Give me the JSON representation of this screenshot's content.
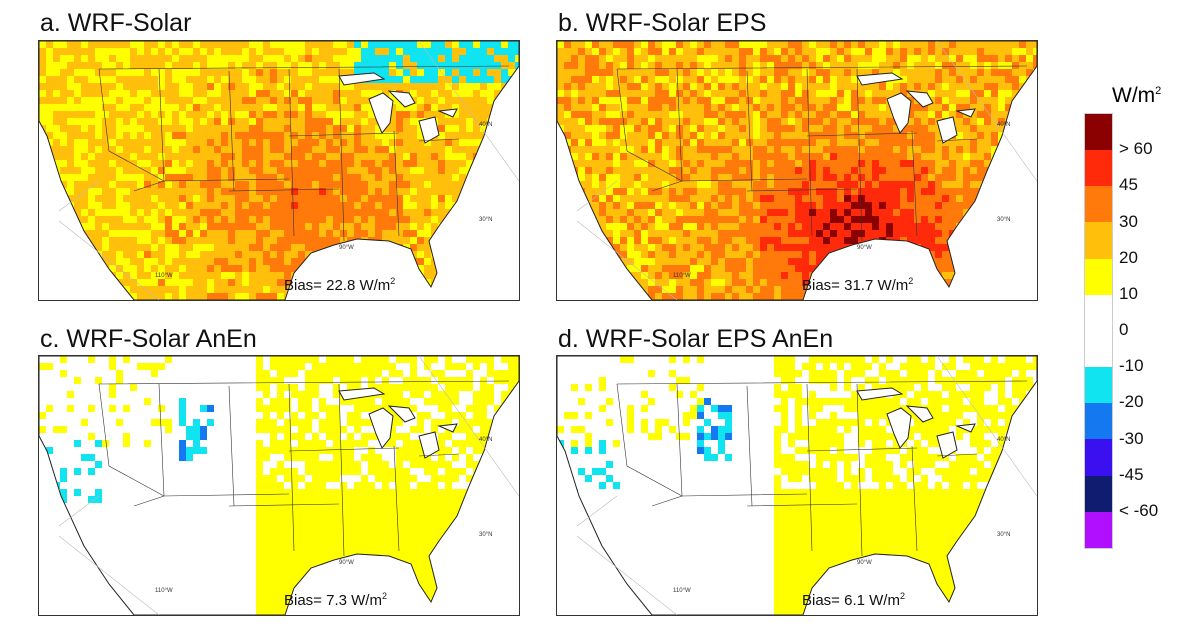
{
  "panels": [
    {
      "title": "a. WRF-Solar",
      "bias_label": "Bias= 22.8 W/m",
      "bias_sup": "2",
      "bias": 22.8
    },
    {
      "title": "b. WRF-Solar EPS",
      "bias_label": "Bias= 31.7 W/m",
      "bias_sup": "2",
      "bias": 31.7
    },
    {
      "title": "c. WRF-Solar AnEn",
      "bias_label": "Bias=  7.3 W/m",
      "bias_sup": "2",
      "bias": 7.3
    },
    {
      "title": "d. WRF-Solar EPS AnEn",
      "bias_label": "Bias=  6.1 W/m",
      "bias_sup": "2",
      "bias": 6.1
    }
  ],
  "map_labels": {
    "lat40": "40°N",
    "lat30": "30°N",
    "lon90": "90°W",
    "lon110": "110°W"
  },
  "colorbar": {
    "unit": "W/m",
    "unit_sup": "2",
    "colors": [
      "#8b0000",
      "#ff2a0a",
      "#ff7a0a",
      "#ffbf0a",
      "#ffff00",
      "#ffffff",
      "#ffffff",
      "#10e4f0",
      "#1478f0",
      "#3a10f0",
      "#101c70",
      "#b010ff"
    ],
    "labels": [
      "> 60",
      "45",
      "30",
      "20",
      "10",
      "0",
      "-10",
      "-20",
      "-30",
      "-45",
      "< -60"
    ]
  }
}
